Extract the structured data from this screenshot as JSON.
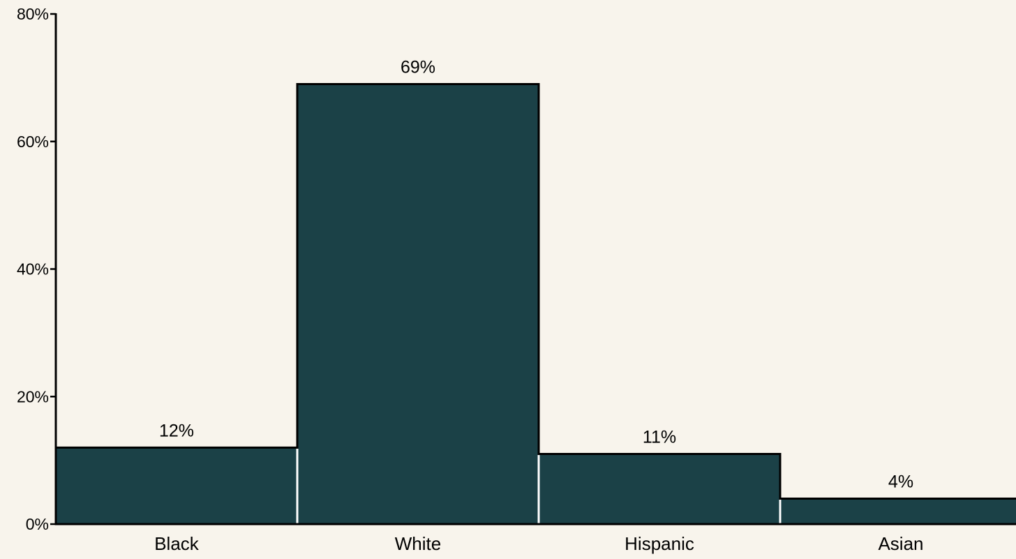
{
  "colors": {
    "background": "#f8f4ec",
    "bar_fill": "#1b4147",
    "bar_edge": "#000000",
    "bar_separator": "#ffffff",
    "axis": "#000000"
  },
  "chart_data": {
    "type": "bar",
    "title": "",
    "xlabel": "",
    "ylabel": "",
    "categories": [
      "Black",
      "White",
      "Hispanic",
      "Asian"
    ],
    "values": [
      12,
      69,
      11,
      4
    ],
    "data_labels": [
      "12%",
      "69%",
      "11%",
      "4%"
    ],
    "ylim": [
      0,
      80
    ],
    "y_ticks": [
      0,
      20,
      40,
      60,
      80
    ],
    "y_tick_labels": [
      "0%",
      "20%",
      "40%",
      "60%",
      "80%"
    ],
    "grid": false,
    "legend": "none"
  }
}
